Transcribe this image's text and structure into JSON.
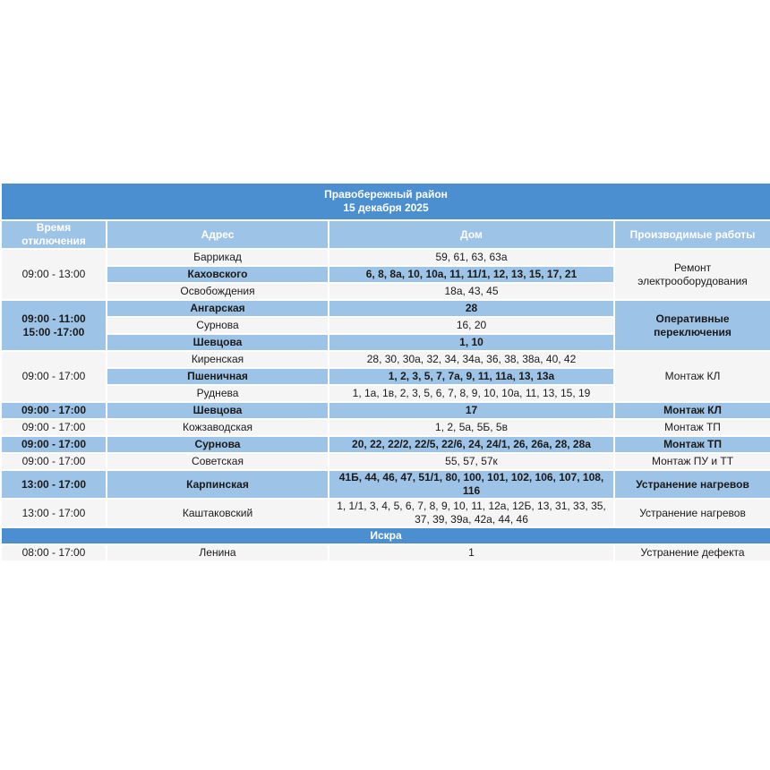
{
  "title": {
    "district": "Правобережный район",
    "date": "15 декабря 2025"
  },
  "columns": [
    "Время отключения",
    "Адрес",
    "Дом",
    "Производимые работы"
  ],
  "colors": {
    "title_bg": "#4b8fd0",
    "header_bg": "#9dc3e6",
    "row_light": "#f5f5f5",
    "row_blue": "#9dc3e6"
  },
  "groups": [
    {
      "time": [
        "09:00 - 13:00"
      ],
      "work": "Ремонт электрооборудования",
      "rows": [
        {
          "addr": "Баррикад",
          "houses": "59, 61, 63, 63а"
        },
        {
          "addr": "Каховского",
          "houses": "6, 8, 8а, 10, 10а, 11, 11/1, 12, 13, 15, 17, 21"
        },
        {
          "addr": "Освобождения",
          "houses": "18а, 43, 45"
        }
      ]
    },
    {
      "time": [
        "09:00 - 11:00",
        "15:00 -17:00"
      ],
      "work": "Оперативные переключения",
      "rows": [
        {
          "addr": "Ангарская",
          "houses": "28"
        },
        {
          "addr": "Сурнова",
          "houses": "16, 20"
        },
        {
          "addr": "Шевцова",
          "houses": "1, 10"
        }
      ]
    },
    {
      "time": [
        "09:00 - 17:00"
      ],
      "work": "Монтаж КЛ",
      "rows": [
        {
          "addr": "Киренская",
          "houses": "28, 30, 30а, 32, 34, 34а, 36, 38, 38а, 40, 42"
        },
        {
          "addr": "Пшеничная",
          "houses": "1, 2, 3, 5, 7, 7а, 9, 11, 11а, 13, 13а"
        },
        {
          "addr": "Руднева",
          "houses": "1, 1а, 1в, 2, 3, 5, 6, 7, 8, 9, 10, 10а, 11, 13, 15, 19"
        }
      ]
    },
    {
      "time": [
        "09:00 - 17:00"
      ],
      "work": "Монтаж КЛ",
      "rows": [
        {
          "addr": "Шевцова",
          "houses": "17"
        }
      ]
    },
    {
      "time": [
        "09:00 - 17:00"
      ],
      "work": "Монтаж ТП",
      "rows": [
        {
          "addr": "Кожзаводская",
          "houses": "1, 2, 5а, 5Б, 5в"
        }
      ]
    },
    {
      "time": [
        "09:00 - 17:00"
      ],
      "work": "Монтаж ТП",
      "rows": [
        {
          "addr": "Сурнова",
          "houses": "20, 22, 22/2, 22/5, 22/6, 24, 24/1, 26, 26а, 28, 28а"
        }
      ]
    },
    {
      "time": [
        "09:00 - 17:00"
      ],
      "work": "Монтаж ПУ и ТТ",
      "rows": [
        {
          "addr": "Советская",
          "houses": "55, 57, 57к"
        }
      ]
    },
    {
      "time": [
        "13:00 - 17:00"
      ],
      "work": "Устранение нагревов",
      "rows": [
        {
          "addr": "Карпинская",
          "houses": "41Б, 44, 46, 47, 51/1, 80, 100, 101, 102, 106, 107, 108, 116"
        }
      ]
    },
    {
      "time": [
        "13:00 - 17:00"
      ],
      "work": "Устранение нагревов",
      "rows": [
        {
          "addr": "Каштаковский",
          "houses": "1, 1/1, 3, 4, 5, 6, 7, 8, 9, 10, 11, 12а, 12Б, 13, 31, 33, 35, 37, 39, 39а, 42а, 44, 46"
        }
      ]
    }
  ],
  "sections": [
    {
      "name": "Искра",
      "groups": [
        {
          "time": [
            "08:00 - 17:00"
          ],
          "work": "Устранение дефекта",
          "rows": [
            {
              "addr": "Ленина",
              "houses": "1"
            }
          ]
        }
      ]
    }
  ]
}
